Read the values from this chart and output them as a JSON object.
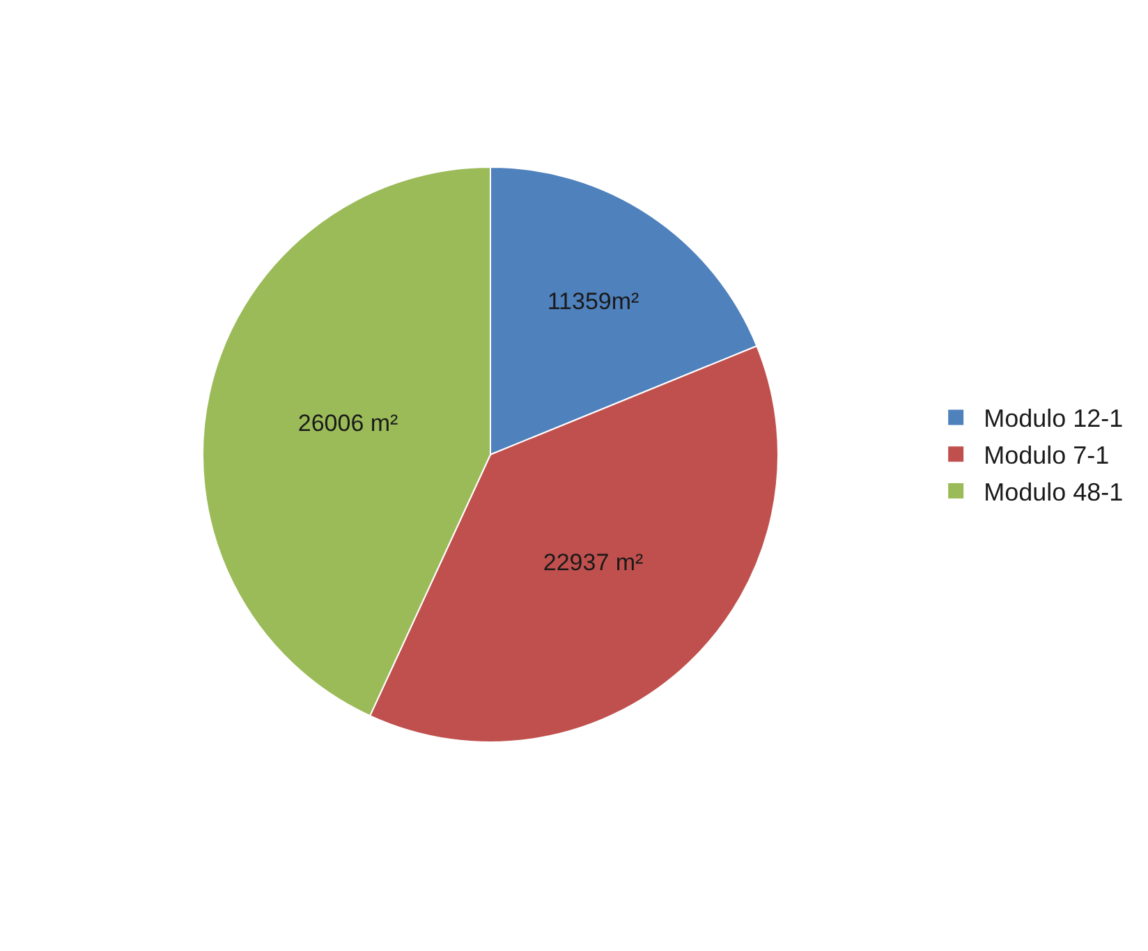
{
  "chart_data": {
    "type": "pie",
    "categories": [
      "Modulo 12-1",
      "Modulo 7-1",
      "Modulo 48-1"
    ],
    "values": [
      11359,
      22937,
      26006
    ],
    "value_labels": [
      "11359m²",
      "22937 m²",
      "26006 m²"
    ],
    "colors": [
      "#4f81bd",
      "#c0504d",
      "#9bbb59"
    ],
    "legend": "right"
  }
}
